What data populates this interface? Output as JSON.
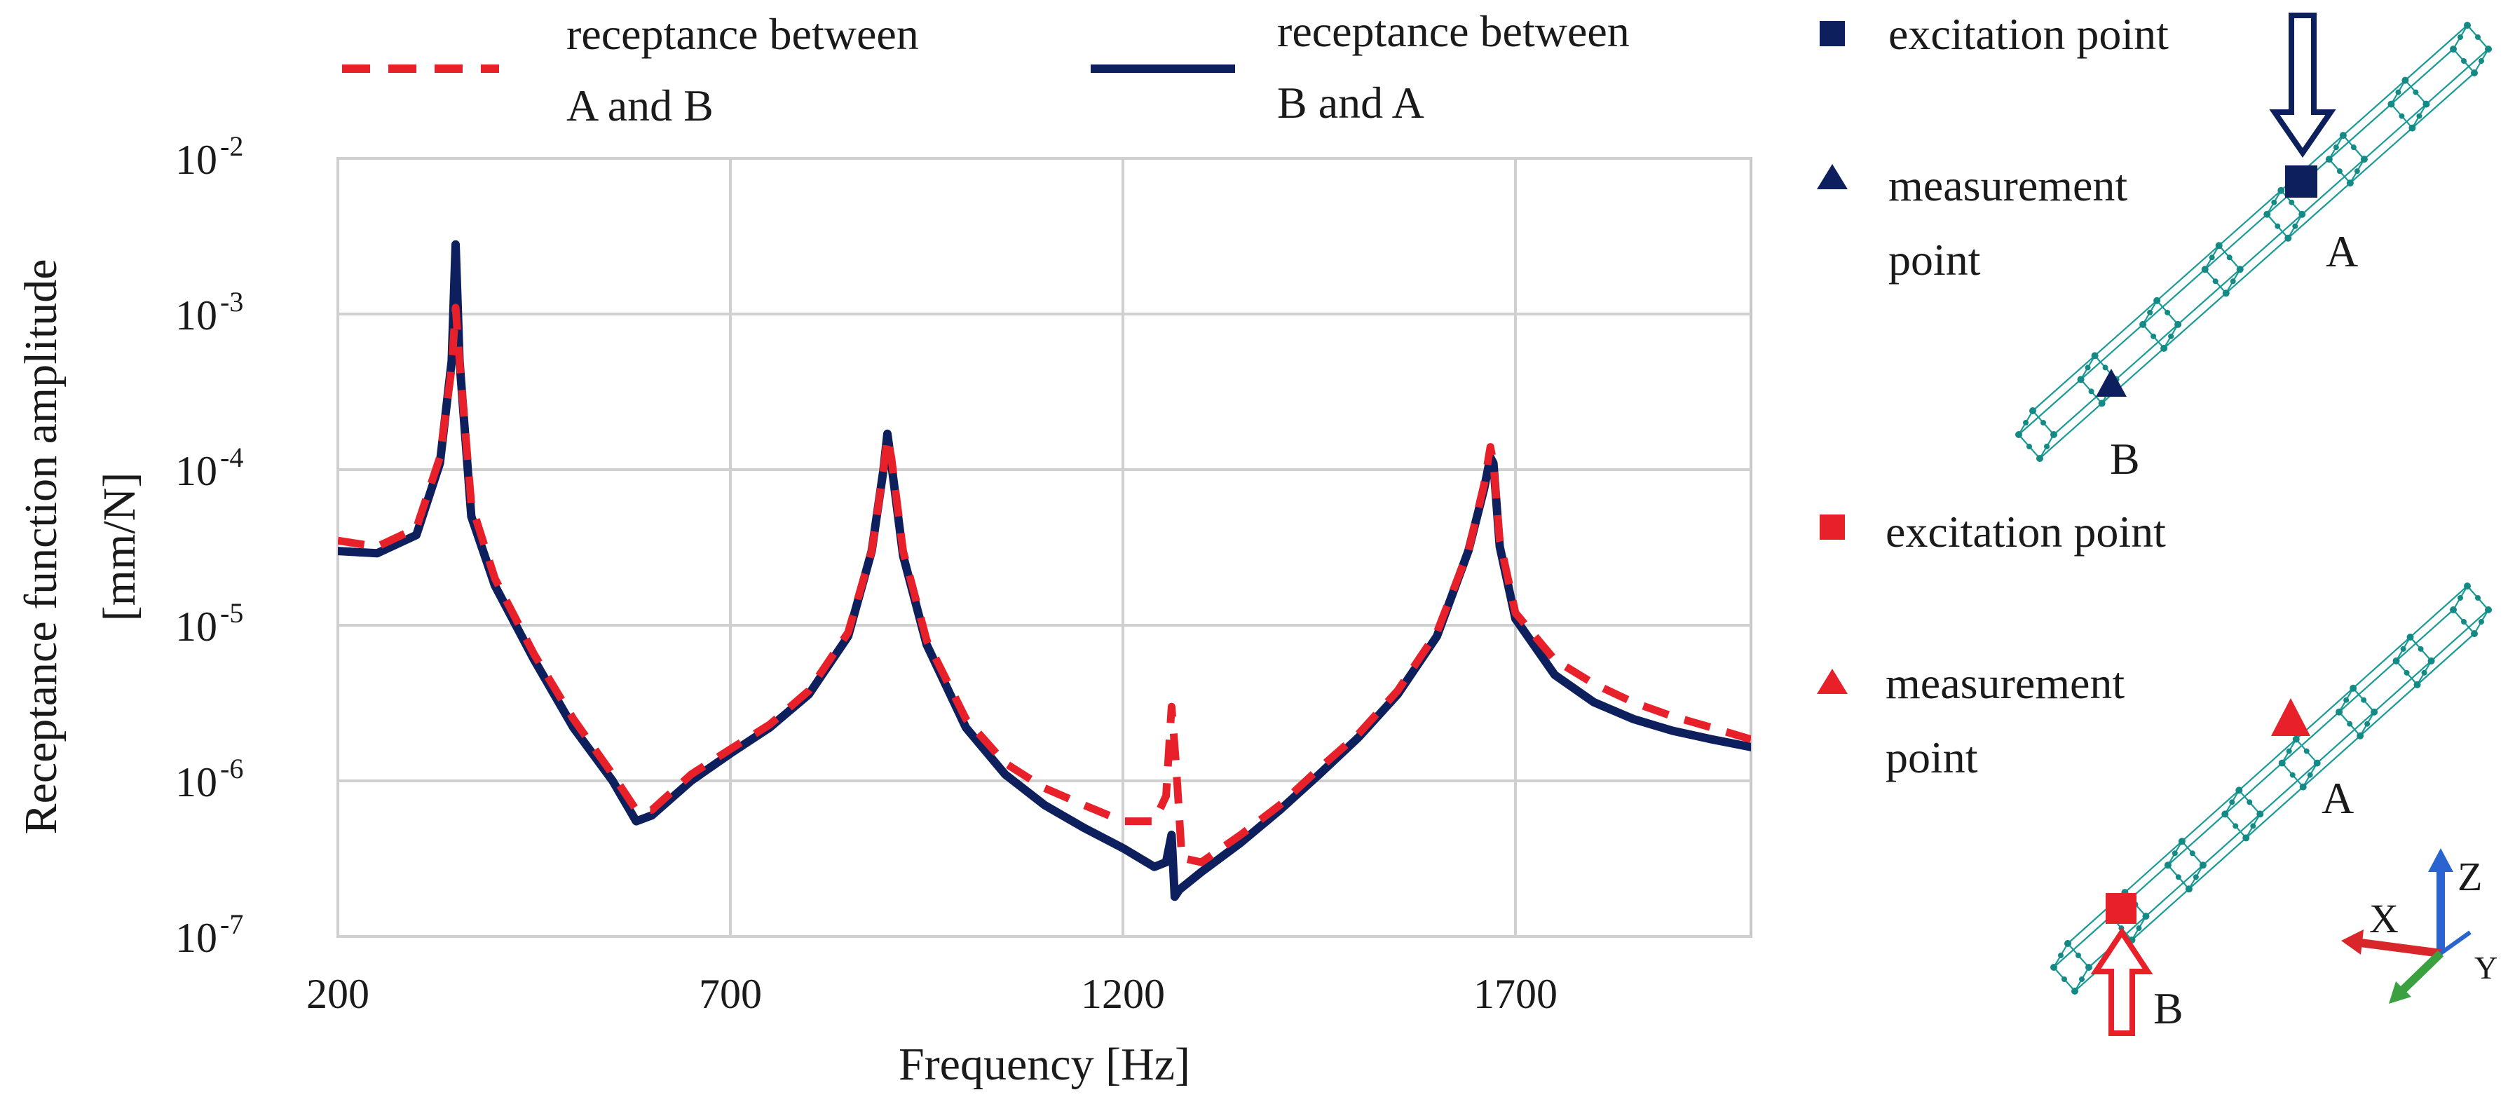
{
  "chart_data": {
    "type": "line",
    "xlabel": "Frequency [Hz]",
    "ylabel": "Receptance function amplitude",
    "ylabel_unit": "[mm/N]",
    "xlim": [
      200,
      2000
    ],
    "ylim": [
      1e-07,
      0.01
    ],
    "yscale": "log",
    "grid": true,
    "x_ticks": [
      {
        "label": "200",
        "value": 200
      },
      {
        "label": "700",
        "value": 700
      },
      {
        "label": "1200",
        "value": 1200
      },
      {
        "label": "1700",
        "value": 1700
      }
    ],
    "y_ticks": [
      {
        "base": "10",
        "exp": "-2",
        "value": 0.01
      },
      {
        "base": "10",
        "exp": "-3",
        "value": 0.001
      },
      {
        "base": "10",
        "exp": "-4",
        "value": 0.0001
      },
      {
        "base": "10",
        "exp": "-5",
        "value": 1e-05
      },
      {
        "base": "10",
        "exp": "-6",
        "value": 1e-06
      },
      {
        "base": "10",
        "exp": "-7",
        "value": 1e-07
      }
    ],
    "legend_position": "top",
    "series": [
      {
        "name_line1": "receptance between",
        "name_line2": "A and B",
        "style": "dashed",
        "color": "#e8202a",
        "x": [
          200,
          250,
          300,
          330,
          345,
          350,
          355,
          370,
          400,
          450,
          500,
          550,
          580,
          600,
          650,
          700,
          750,
          800,
          850,
          880,
          895,
          900,
          905,
          920,
          950,
          1000,
          1050,
          1100,
          1150,
          1200,
          1240,
          1255,
          1262,
          1268,
          1275,
          1300,
          1350,
          1400,
          1450,
          1500,
          1550,
          1600,
          1640,
          1660,
          1668,
          1672,
          1680,
          1700,
          1750,
          1800,
          1850,
          1900,
          1950,
          2000
        ],
        "y": [
          3.5e-05,
          3.2e-05,
          4.2e-05,
          0.00012,
          0.00045,
          0.0011,
          0.0005,
          6e-05,
          2e-05,
          6.5e-06,
          2.5e-06,
          1.1e-06,
          6.5e-07,
          6.5e-07,
          1.1e-06,
          1.6e-06,
          2.3e-06,
          3.8e-06,
          9e-06,
          3e-05,
          0.0001,
          0.00016,
          0.00012,
          3e-05,
          8e-06,
          2.5e-06,
          1.3e-06,
          9e-07,
          7e-07,
          5.5e-07,
          5.5e-07,
          8e-07,
          3e-06,
          1.2e-06,
          3.2e-07,
          3e-07,
          4.5e-07,
          7e-07,
          1.2e-06,
          2e-06,
          3.8e-06,
          9e-06,
          3e-05,
          8e-05,
          0.00014,
          0.00011,
          3.5e-05,
          1.2e-05,
          6e-06,
          4.2e-06,
          3.2e-06,
          2.6e-06,
          2.2e-06,
          1.85e-06
        ]
      },
      {
        "name_line1": "receptance between",
        "name_line2": "B and A",
        "style": "solid",
        "color": "#0d1f5c",
        "x": [
          200,
          250,
          300,
          330,
          345,
          350,
          355,
          370,
          400,
          450,
          500,
          550,
          580,
          600,
          650,
          700,
          750,
          800,
          850,
          880,
          895,
          900,
          905,
          920,
          950,
          1000,
          1050,
          1100,
          1150,
          1200,
          1240,
          1255,
          1262,
          1266,
          1272,
          1300,
          1350,
          1400,
          1450,
          1500,
          1550,
          1600,
          1640,
          1660,
          1668,
          1672,
          1680,
          1700,
          1750,
          1800,
          1850,
          1900,
          1950,
          2000
        ],
        "y": [
          3e-05,
          2.9e-05,
          3.8e-05,
          0.00011,
          0.0005,
          0.0028,
          0.0005,
          5e-05,
          1.8e-05,
          6e-06,
          2.2e-06,
          1e-06,
          5.5e-07,
          6e-07,
          1e-06,
          1.5e-06,
          2.2e-06,
          3.6e-06,
          8.5e-06,
          3e-05,
          0.0001,
          0.00017,
          0.00011,
          2.8e-05,
          7.5e-06,
          2.2e-06,
          1.1e-06,
          7e-07,
          5e-07,
          3.7e-07,
          2.8e-07,
          3e-07,
          4.5e-07,
          1.8e-07,
          2e-07,
          2.6e-07,
          4e-07,
          6.5e-07,
          1.1e-06,
          1.9e-06,
          3.6e-06,
          8.5e-06,
          3e-05,
          7.5e-05,
          0.00012,
          0.00011,
          3.2e-05,
          1.1e-05,
          4.8e-06,
          3.2e-06,
          2.5e-06,
          2.1e-06,
          1.85e-06,
          1.65e-06
        ]
      }
    ]
  },
  "side_panel": {
    "top_group": {
      "excitation_label": "excitation point",
      "measurement_line1": "measurement",
      "measurement_line2": "point",
      "point_a": "A",
      "point_b": "B",
      "marker_color": "#0d1f5c"
    },
    "bottom_group": {
      "excitation_label": "excitation point",
      "measurement_line1": "measurement",
      "measurement_line2": "point",
      "point_a": "A",
      "point_b": "B",
      "marker_color": "#e8202a"
    },
    "axis_triad": {
      "x_label": "X",
      "y_label": "Y",
      "z_label": "Z",
      "x_color": "#d8262a",
      "y_color": "#3aa040",
      "z_color": "#2a64d0"
    }
  },
  "colors": {
    "grid": "#d0d0d0",
    "frame": "#c8c8c8",
    "mesh": "#1a9a96"
  }
}
